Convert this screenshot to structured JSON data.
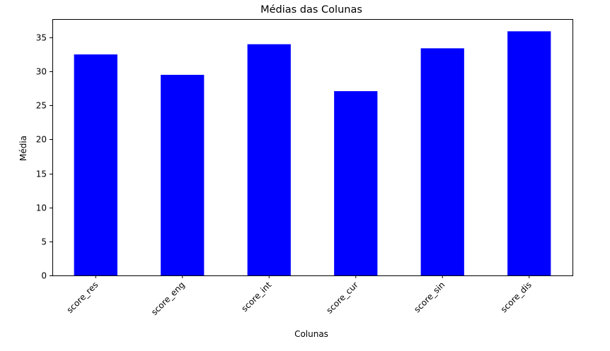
{
  "chart_data": {
    "type": "bar",
    "title": "Médias das Colunas",
    "xlabel": "Colunas",
    "ylabel": "Média",
    "categories": [
      "score_res",
      "score_eng",
      "score_int",
      "score_cur",
      "score_sin",
      "score_dis"
    ],
    "values": [
      32.5,
      29.5,
      34.0,
      27.1,
      33.4,
      35.9
    ],
    "ylim": [
      0,
      37.7
    ],
    "yticks": [
      0,
      5,
      10,
      15,
      20,
      25,
      30,
      35
    ],
    "bar_color": "#0000ff",
    "grid": false,
    "xtick_rotation_deg": 45
  }
}
